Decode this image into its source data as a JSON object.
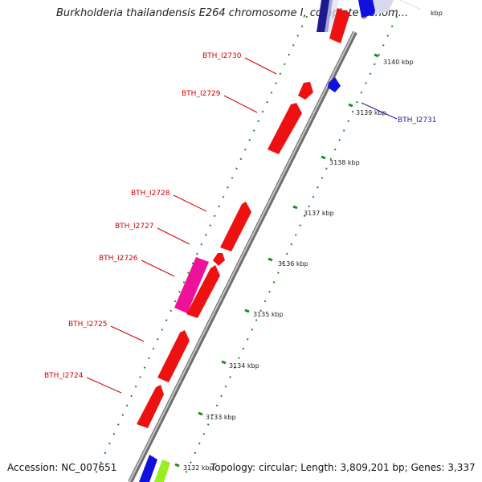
{
  "title": "Burkholderia thailandensis E264 chromosome I, complete genom...",
  "accession": "Accession: NC_007651",
  "topology": "Topology: circular; Length: 3,809,201 bp; Genes: 3,337",
  "colors": {
    "gene_label_red": "#d40000",
    "gene_label_blue": "#1a1aaa",
    "gene_red": "#ee1111",
    "gene_blue": "#1111dd",
    "gene_magenta": "#ee1199",
    "gene_lime": "#99ee22",
    "backbone": "#8a8a8a",
    "tick_green": "#1d8a1d"
  },
  "kbp_ticks": [
    {
      "id": "t3133",
      "label": "3133 kbp"
    },
    {
      "id": "t3134",
      "label": "3134 kbp"
    },
    {
      "id": "t3135",
      "label": "3135 kbp"
    },
    {
      "id": "t3136",
      "label": "3136 kbp"
    },
    {
      "id": "t3137",
      "label": "3137 kbp"
    },
    {
      "id": "t3138",
      "label": "3138 kbp"
    },
    {
      "id": "t3139",
      "label": "3139 kbp"
    },
    {
      "id": "t3140",
      "label": "3140 kbp"
    },
    {
      "id": "t3132",
      "label": "3132 kbp"
    },
    {
      "id": "t3141",
      "label": "kbp"
    }
  ],
  "gene_labels": [
    {
      "id": "g2730",
      "label": "BTH_I2730"
    },
    {
      "id": "g2729",
      "label": "BTH_I2729"
    },
    {
      "id": "g2728",
      "label": "BTH_I2728"
    },
    {
      "id": "g2727",
      "label": "BTH_I2727"
    },
    {
      "id": "g2726",
      "label": "BTH_I2726"
    },
    {
      "id": "g2725",
      "label": "BTH_I2725"
    },
    {
      "id": "g2724",
      "label": "BTH_I2724"
    },
    {
      "id": "g2731",
      "label": "BTH_I2731"
    }
  ]
}
